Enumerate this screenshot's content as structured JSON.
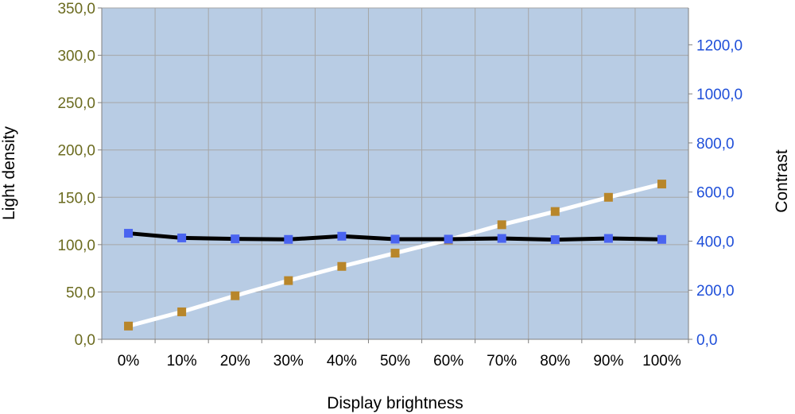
{
  "chart_data": {
    "type": "line",
    "xlabel": "Display brightness",
    "ylabel_left": "Light density",
    "ylabel_right": "Contrast",
    "categories": [
      "0%",
      "10%",
      "20%",
      "30%",
      "40%",
      "50%",
      "60%",
      "70%",
      "80%",
      "90%",
      "100%"
    ],
    "y_left": {
      "lim": [
        0,
        350
      ],
      "ticks": [
        "0,0",
        "50,0",
        "100,0",
        "150,0",
        "200,0",
        "250,0",
        "300,0",
        "350,0"
      ]
    },
    "y_right": {
      "lim": [
        0,
        1350
      ],
      "ticks": [
        "0,0",
        "200,0",
        "400,0",
        "600,0",
        "800,0",
        "1000,0",
        "1200,0"
      ]
    },
    "grid": true,
    "legend": "none",
    "series": [
      {
        "axis": "left",
        "line_color": "#ffffff",
        "marker_color": "#b8862a",
        "values": [
          14,
          29,
          46,
          62,
          77,
          91,
          105,
          121,
          135,
          150,
          164
        ]
      },
      {
        "axis": "right",
        "line_color": "#000000",
        "marker_color": "#4a64f0",
        "values": [
          432,
          413,
          409,
          407,
          420,
          408,
          408,
          411,
          406,
          411,
          407
        ]
      }
    ],
    "colors": {
      "plot_bg": "#b8cce4",
      "grid": "#a6a6a6",
      "left_axis_text": "#6b6b1f",
      "right_axis_text": "#1f4fd9"
    }
  }
}
